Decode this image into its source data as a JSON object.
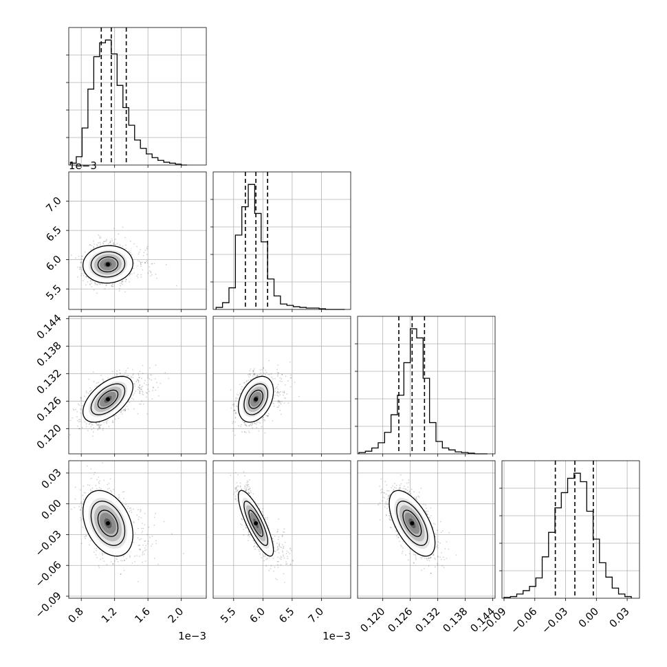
{
  "chart_data": {
    "type": "corner",
    "grid": true,
    "parameters": [
      {
        "range": [
          0.65,
          2.3
        ],
        "ticks": [
          "0.8",
          "1.2",
          "1.6",
          "2.0"
        ],
        "tick_values": [
          0.8,
          1.2,
          1.6,
          2.0
        ],
        "offset_label": "1e−3"
      },
      {
        "range": [
          5.15,
          7.5
        ],
        "ticks": [
          "5.5",
          "6.0",
          "6.5",
          "7.0"
        ],
        "tick_values": [
          5.5,
          6.0,
          6.5,
          7.0
        ],
        "offset_label": "1e−3"
      },
      {
        "range": [
          0.1145,
          0.1445
        ],
        "ticks": [
          "0.120",
          "0.126",
          "0.132",
          "0.138",
          "0.144"
        ],
        "tick_values": [
          0.12,
          0.126,
          0.132,
          0.138,
          0.144
        ]
      },
      {
        "range": [
          -0.092,
          0.042
        ],
        "ticks": [
          "−0.09",
          "−0.06",
          "−0.03",
          "0.00",
          "0.03"
        ],
        "tick_values": [
          -0.09,
          -0.06,
          -0.03,
          0.0,
          0.03
        ]
      }
    ],
    "quantiles": [
      [
        1.04,
        1.16,
        1.34
      ],
      [
        5.7,
        5.88,
        6.08
      ],
      [
        0.1235,
        0.1264,
        0.1291
      ],
      [
        -0.04,
        -0.021,
        -0.003
      ]
    ],
    "histograms": [
      {
        "bin_edges": [
          0.67,
          0.74,
          0.81,
          0.88,
          0.95,
          1.02,
          1.09,
          1.16,
          1.23,
          1.3,
          1.37,
          1.44,
          1.51,
          1.58,
          1.65,
          1.72,
          1.79,
          1.86,
          1.93,
          2.0,
          2.07
        ],
        "counts": [
          2,
          9,
          40,
          82,
          117,
          132,
          135,
          120,
          86,
          62,
          43,
          27,
          18,
          12,
          8,
          5,
          3,
          2,
          1,
          0
        ]
      },
      {
        "bin_edges": [
          5.2,
          5.31,
          5.42,
          5.53,
          5.64,
          5.75,
          5.86,
          5.97,
          6.08,
          6.19,
          6.3,
          6.41,
          6.52,
          6.63,
          6.74,
          6.85,
          6.96,
          7.07,
          7.18,
          7.29,
          7.4
        ],
        "counts": [
          3,
          10,
          32,
          110,
          152,
          185,
          142,
          100,
          45,
          20,
          8,
          6,
          4,
          3,
          2,
          2,
          1,
          0,
          0,
          0
        ]
      },
      {
        "bin_edges": [
          0.1148,
          0.1162,
          0.1176,
          0.119,
          0.1204,
          0.1218,
          0.1232,
          0.1246,
          0.126,
          0.1274,
          0.1288,
          0.1302,
          0.1316,
          0.133,
          0.1344,
          0.1358,
          0.1372,
          0.1386,
          0.14,
          0.1414,
          0.1428
        ],
        "counts": [
          2,
          4,
          9,
          17,
          33,
          60,
          90,
          140,
          192,
          178,
          116,
          48,
          19,
          9,
          6,
          3,
          2,
          1,
          0,
          0
        ]
      },
      {
        "bin_edges": [
          -0.09,
          -0.0838,
          -0.0776,
          -0.0714,
          -0.0652,
          -0.059,
          -0.0528,
          -0.0466,
          -0.0404,
          -0.0342,
          -0.028,
          -0.0218,
          -0.0156,
          -0.0094,
          -0.0032,
          0.003,
          0.0092,
          0.0154,
          0.0216,
          0.0278,
          0.034
        ],
        "counts": [
          1,
          2,
          5,
          9,
          14,
          24,
          49,
          78,
          107,
          125,
          142,
          148,
          138,
          103,
          70,
          42,
          25,
          12,
          5,
          2
        ]
      }
    ],
    "correlations": [
      {
        "pair": [
          1,
          0
        ],
        "mean": [
          1.12,
          5.92
        ],
        "sd": [
          0.15,
          0.16
        ],
        "rho": 0.05
      },
      {
        "pair": [
          2,
          0
        ],
        "mean": [
          1.12,
          0.1264
        ],
        "sd": [
          0.15,
          0.0025
        ],
        "rho": 0.55
      },
      {
        "pair": [
          2,
          1
        ],
        "mean": [
          5.88,
          0.1264
        ],
        "sd": [
          0.15,
          0.0025
        ],
        "rho": 0.35
      },
      {
        "pair": [
          3,
          0
        ],
        "mean": [
          1.12,
          -0.019
        ],
        "sd": [
          0.15,
          0.016
        ],
        "rho": -0.35
      },
      {
        "pair": [
          3,
          1
        ],
        "mean": [
          5.88,
          -0.019
        ],
        "sd": [
          0.15,
          0.016
        ],
        "rho": -0.82
      },
      {
        "pair": [
          3,
          2
        ],
        "mean": [
          0.1264,
          -0.019
        ],
        "sd": [
          0.0025,
          0.016
        ],
        "rho": -0.6
      }
    ]
  }
}
